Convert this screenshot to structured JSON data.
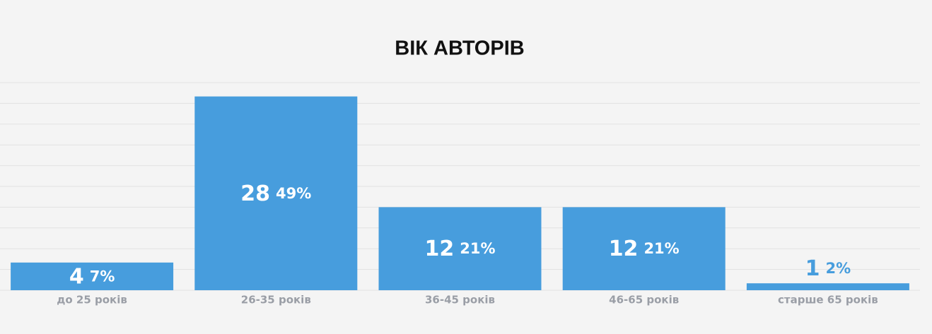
{
  "chart_data": {
    "type": "bar",
    "title": "ВІК АВТОРІВ",
    "categories": [
      "до 25 років",
      "26-35 років",
      "36-45 років",
      "46-65 років",
      "старше 65 років"
    ],
    "values": [
      4,
      28,
      12,
      12,
      1
    ],
    "percent_labels": [
      "7%",
      "49%",
      "21%",
      "21%",
      "2%"
    ],
    "color": "#479ddd",
    "ylim": [
      0,
      30
    ],
    "yticks": [
      0,
      3,
      6,
      9,
      12,
      15,
      18,
      21,
      24,
      27,
      30
    ],
    "grid": true
  }
}
